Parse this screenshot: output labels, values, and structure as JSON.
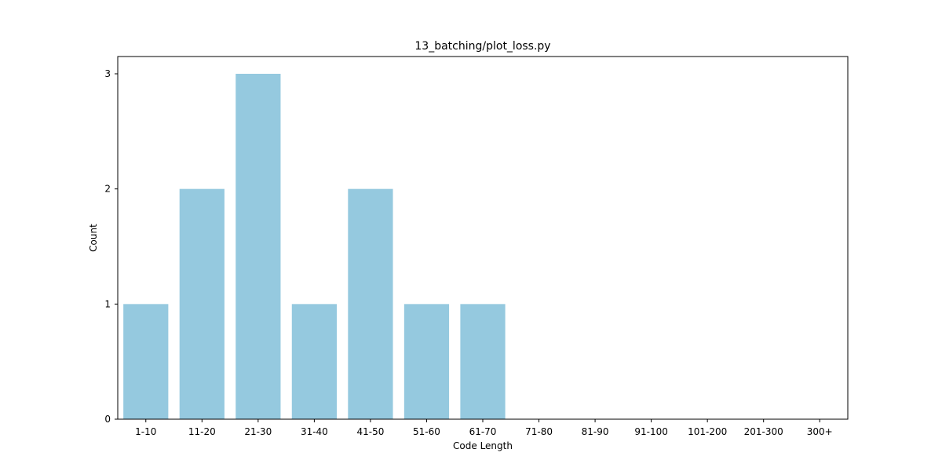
{
  "chart_data": {
    "type": "bar",
    "title": "13_batching/plot_loss.py",
    "xlabel": "Code Length",
    "ylabel": "Count",
    "categories": [
      "1-10",
      "11-20",
      "21-30",
      "31-40",
      "41-50",
      "51-60",
      "61-70",
      "71-80",
      "81-90",
      "91-100",
      "101-200",
      "201-300",
      "300+"
    ],
    "values": [
      1,
      2,
      3,
      1,
      2,
      1,
      1,
      0,
      0,
      0,
      0,
      0,
      0
    ],
    "ylim": [
      0,
      3.15
    ],
    "yticks": [
      0,
      1,
      2,
      3
    ],
    "grid": false,
    "legend": "none",
    "bar_color": "#95c9df",
    "axis_color": "#000000"
  }
}
